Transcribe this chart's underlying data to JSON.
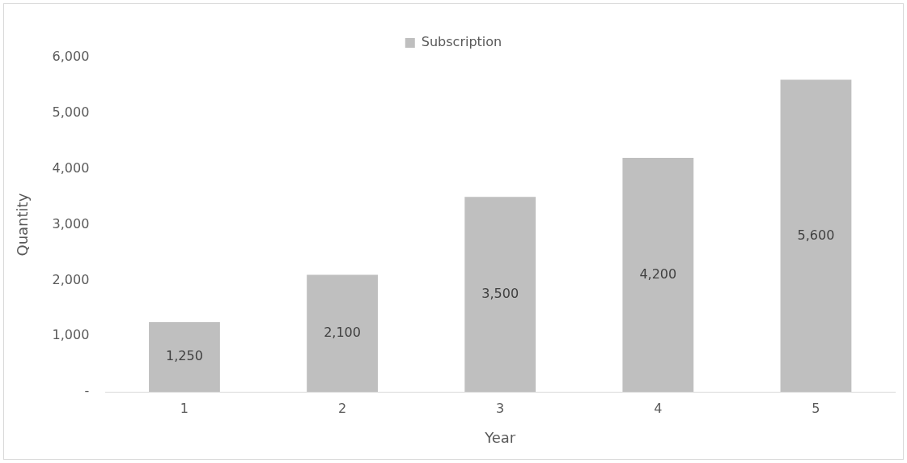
{
  "chart_data": {
    "type": "bar",
    "xlabel": "Year",
    "ylabel": "Quantity",
    "categories": [
      "1",
      "2",
      "3",
      "4",
      "5"
    ],
    "series": [
      {
        "name": "Subscription",
        "color": "#bfbfbf",
        "values": [
          1250,
          2100,
          3500,
          4200,
          5600
        ],
        "value_labels": [
          "1,250",
          "2,100",
          "3,500",
          "4,200",
          "5,600"
        ]
      }
    ],
    "ylim": [
      0,
      6000
    ],
    "yticks": [
      {
        "value": 0,
        "label": "-"
      },
      {
        "value": 1000,
        "label": "1,000"
      },
      {
        "value": 2000,
        "label": "2,000"
      },
      {
        "value": 3000,
        "label": "3,000"
      },
      {
        "value": 4000,
        "label": "4,000"
      },
      {
        "value": 5000,
        "label": "5,000"
      },
      {
        "value": 6000,
        "label": "6,000"
      }
    ],
    "grid": false,
    "legend": "top"
  }
}
